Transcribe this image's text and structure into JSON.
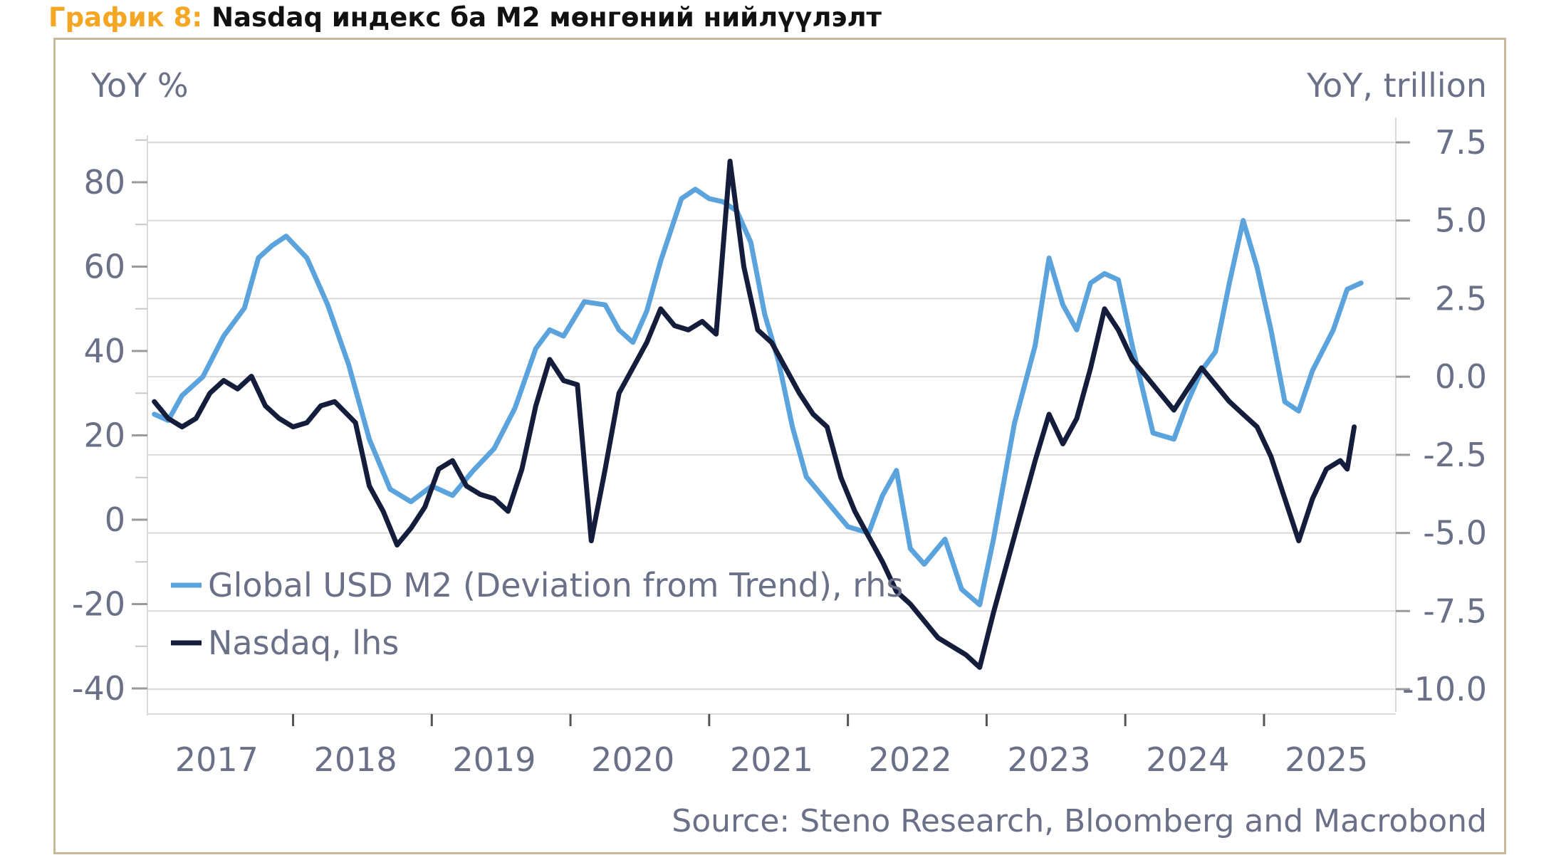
{
  "figure_title": {
    "label": "График 8:",
    "text": " Nasdaq индекс ба M2 мөнгөний нийлүүлэлт"
  },
  "colors": {
    "m2": "#5BA3DC",
    "nasdaq": "#141E3C",
    "grid": "#DADADA",
    "axis_text": "#6A7088",
    "frame": "#C8B99A",
    "title_label": "#F5A623"
  },
  "chart_data": {
    "type": "line",
    "left_axis_title": "YoY %",
    "right_axis_title": "YoY, trillion",
    "source": "Source: Steno Research, Bloomberg and Macrobond",
    "y_left": {
      "min": -40,
      "max": 80,
      "ticks": [
        80,
        60,
        40,
        20,
        0,
        -20,
        -40
      ]
    },
    "y_right": {
      "min": -10,
      "max": 7.5,
      "ticks": [
        "7.5",
        "5.0",
        "2.5",
        "0.0",
        "-2.5",
        "-5.0",
        "-7.5",
        "-10.0"
      ]
    },
    "x_labels": [
      "2017",
      "2018",
      "2019",
      "2020",
      "2021",
      "2022",
      "2023",
      "2024",
      "2025"
    ],
    "grid": true,
    "legend_position": "bottom-left",
    "series": [
      {
        "name": "Global USD M2 (Deviation from Trend), rhs",
        "axis": "right",
        "points": [
          [
            2017.0,
            -1.2
          ],
          [
            2017.1,
            -1.4
          ],
          [
            2017.2,
            -0.6
          ],
          [
            2017.35,
            0.0
          ],
          [
            2017.5,
            1.3
          ],
          [
            2017.65,
            2.2
          ],
          [
            2017.75,
            3.8
          ],
          [
            2017.85,
            4.2
          ],
          [
            2017.95,
            4.5
          ],
          [
            2018.1,
            3.8
          ],
          [
            2018.25,
            2.3
          ],
          [
            2018.4,
            0.4
          ],
          [
            2018.55,
            -2.0
          ],
          [
            2018.7,
            -3.6
          ],
          [
            2018.85,
            -4.0
          ],
          [
            2019.0,
            -3.5
          ],
          [
            2019.15,
            -3.8
          ],
          [
            2019.3,
            -3.0
          ],
          [
            2019.45,
            -2.3
          ],
          [
            2019.6,
            -1.0
          ],
          [
            2019.75,
            0.9
          ],
          [
            2019.85,
            1.5
          ],
          [
            2019.95,
            1.3
          ],
          [
            2020.1,
            2.4
          ],
          [
            2020.25,
            2.3
          ],
          [
            2020.35,
            1.5
          ],
          [
            2020.45,
            1.1
          ],
          [
            2020.55,
            2.1
          ],
          [
            2020.65,
            3.7
          ],
          [
            2020.8,
            5.7
          ],
          [
            2020.9,
            6.0
          ],
          [
            2021.0,
            5.7
          ],
          [
            2021.1,
            5.6
          ],
          [
            2021.2,
            5.3
          ],
          [
            2021.3,
            4.3
          ],
          [
            2021.4,
            2.0
          ],
          [
            2021.5,
            0.5
          ],
          [
            2021.6,
            -1.6
          ],
          [
            2021.7,
            -3.2
          ],
          [
            2021.85,
            -4.0
          ],
          [
            2022.0,
            -4.8
          ],
          [
            2022.15,
            -5.0
          ],
          [
            2022.25,
            -3.8
          ],
          [
            2022.35,
            -3.0
          ],
          [
            2022.45,
            -5.5
          ],
          [
            2022.55,
            -6.0
          ],
          [
            2022.7,
            -5.2
          ],
          [
            2022.82,
            -6.8
          ],
          [
            2022.95,
            -7.3
          ],
          [
            2023.05,
            -5.2
          ],
          [
            2023.2,
            -1.5
          ],
          [
            2023.35,
            1.0
          ],
          [
            2023.45,
            3.8
          ],
          [
            2023.55,
            2.3
          ],
          [
            2023.65,
            1.5
          ],
          [
            2023.75,
            3.0
          ],
          [
            2023.85,
            3.3
          ],
          [
            2023.95,
            3.1
          ],
          [
            2024.05,
            1.0
          ],
          [
            2024.2,
            -1.8
          ],
          [
            2024.35,
            -2.0
          ],
          [
            2024.45,
            -0.8
          ],
          [
            2024.55,
            0.2
          ],
          [
            2024.65,
            0.8
          ],
          [
            2024.75,
            3.0
          ],
          [
            2024.85,
            5.0
          ],
          [
            2024.95,
            3.5
          ],
          [
            2025.05,
            1.5
          ],
          [
            2025.15,
            -0.8
          ],
          [
            2025.25,
            -1.1
          ],
          [
            2025.35,
            0.2
          ],
          [
            2025.5,
            1.5
          ],
          [
            2025.6,
            2.8
          ],
          [
            2025.7,
            3.0
          ]
        ]
      },
      {
        "name": "Nasdaq, lhs",
        "axis": "left",
        "points": [
          [
            2017.0,
            28
          ],
          [
            2017.1,
            24
          ],
          [
            2017.2,
            22
          ],
          [
            2017.3,
            24
          ],
          [
            2017.4,
            30
          ],
          [
            2017.5,
            33
          ],
          [
            2017.6,
            31
          ],
          [
            2017.7,
            34
          ],
          [
            2017.8,
            27
          ],
          [
            2017.9,
            24
          ],
          [
            2018.0,
            22
          ],
          [
            2018.1,
            23
          ],
          [
            2018.2,
            27
          ],
          [
            2018.3,
            28
          ],
          [
            2018.45,
            23
          ],
          [
            2018.55,
            8
          ],
          [
            2018.65,
            2
          ],
          [
            2018.75,
            -6
          ],
          [
            2018.85,
            -2
          ],
          [
            2018.95,
            3
          ],
          [
            2019.05,
            12
          ],
          [
            2019.15,
            14
          ],
          [
            2019.25,
            8
          ],
          [
            2019.35,
            6
          ],
          [
            2019.45,
            5
          ],
          [
            2019.55,
            2
          ],
          [
            2019.65,
            12
          ],
          [
            2019.75,
            27
          ],
          [
            2019.85,
            38
          ],
          [
            2019.95,
            33
          ],
          [
            2020.05,
            32
          ],
          [
            2020.15,
            -5
          ],
          [
            2020.25,
            12
          ],
          [
            2020.35,
            30
          ],
          [
            2020.45,
            36
          ],
          [
            2020.55,
            42
          ],
          [
            2020.65,
            50
          ],
          [
            2020.75,
            46
          ],
          [
            2020.85,
            45
          ],
          [
            2020.95,
            47
          ],
          [
            2021.05,
            44
          ],
          [
            2021.15,
            85
          ],
          [
            2021.25,
            60
          ],
          [
            2021.35,
            45
          ],
          [
            2021.45,
            42
          ],
          [
            2021.55,
            36
          ],
          [
            2021.65,
            30
          ],
          [
            2021.75,
            25
          ],
          [
            2021.85,
            22
          ],
          [
            2021.95,
            10
          ],
          [
            2022.05,
            2
          ],
          [
            2022.15,
            -4
          ],
          [
            2022.25,
            -10
          ],
          [
            2022.35,
            -17
          ],
          [
            2022.45,
            -20
          ],
          [
            2022.55,
            -24
          ],
          [
            2022.65,
            -28
          ],
          [
            2022.75,
            -30
          ],
          [
            2022.85,
            -32
          ],
          [
            2022.95,
            -35
          ],
          [
            2023.05,
            -22
          ],
          [
            2023.15,
            -10
          ],
          [
            2023.25,
            2
          ],
          [
            2023.35,
            14
          ],
          [
            2023.45,
            25
          ],
          [
            2023.55,
            18
          ],
          [
            2023.65,
            24
          ],
          [
            2023.75,
            36
          ],
          [
            2023.85,
            50
          ],
          [
            2023.95,
            45
          ],
          [
            2024.05,
            38
          ],
          [
            2024.15,
            34
          ],
          [
            2024.25,
            30
          ],
          [
            2024.35,
            26
          ],
          [
            2024.45,
            31
          ],
          [
            2024.55,
            36
          ],
          [
            2024.65,
            32
          ],
          [
            2024.75,
            28
          ],
          [
            2024.85,
            25
          ],
          [
            2024.95,
            22
          ],
          [
            2025.05,
            15
          ],
          [
            2025.15,
            5
          ],
          [
            2025.25,
            -5
          ],
          [
            2025.35,
            5
          ],
          [
            2025.45,
            12
          ],
          [
            2025.55,
            14
          ],
          [
            2025.6,
            12
          ],
          [
            2025.65,
            22
          ]
        ]
      }
    ]
  }
}
